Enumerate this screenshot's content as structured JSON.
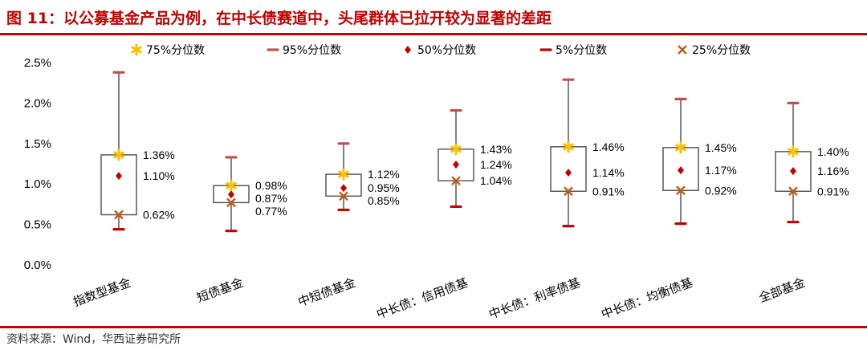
{
  "figure": {
    "title": "图 11：以公募基金产品为例，在中长债赛道中，头尾群体已拉开较为显著的差距",
    "source": "资料来源：Wind，华西证券研究所"
  },
  "colors": {
    "accent": "#c00000",
    "p75": "#ffc000",
    "p95": "#c0504d",
    "p50": "#c00000",
    "p5": "#c00000",
    "p25": "#c55a11",
    "box": "#595959"
  },
  "chart_data": {
    "type": "box",
    "ylim": [
      0,
      2.5
    ],
    "yticks": [
      "0.0%",
      "0.5%",
      "1.0%",
      "1.5%",
      "2.0%",
      "2.5%"
    ],
    "legend": [
      "75%分位数",
      "95%分位数",
      "50%分位数",
      "5%分位数",
      "25%分位数"
    ],
    "legend_position": "top",
    "categories": [
      "指数型基金",
      "短债基金",
      "中短债基金",
      "中长债：信用债基",
      "中长债：利率债基",
      "中长债：均衡债基",
      "全部基金"
    ],
    "series": [
      {
        "name": "75%分位数",
        "values": [
          1.36,
          0.98,
          1.12,
          1.43,
          1.46,
          1.45,
          1.4
        ],
        "labels": [
          "1.36%",
          "0.98%",
          "1.12%",
          "1.43%",
          "1.46%",
          "1.45%",
          "1.40%"
        ]
      },
      {
        "name": "95%分位数",
        "values": [
          2.38,
          1.33,
          1.5,
          1.91,
          2.29,
          2.05,
          2.0
        ]
      },
      {
        "name": "50%分位数",
        "values": [
          1.1,
          0.87,
          0.95,
          1.24,
          1.14,
          1.17,
          1.16
        ],
        "labels": [
          "1.10%",
          "0.87%",
          "0.95%",
          "1.24%",
          "1.14%",
          "1.17%",
          "1.16%"
        ]
      },
      {
        "name": "5%分位数",
        "values": [
          0.44,
          0.42,
          0.68,
          0.72,
          0.48,
          0.51,
          0.53
        ]
      },
      {
        "name": "25%分位数",
        "values": [
          0.62,
          0.77,
          0.85,
          1.04,
          0.91,
          0.92,
          0.91
        ],
        "labels": [
          "0.62%",
          "0.77%",
          "0.85%",
          "1.04%",
          "0.91%",
          "0.92%",
          "0.91%"
        ]
      }
    ]
  }
}
